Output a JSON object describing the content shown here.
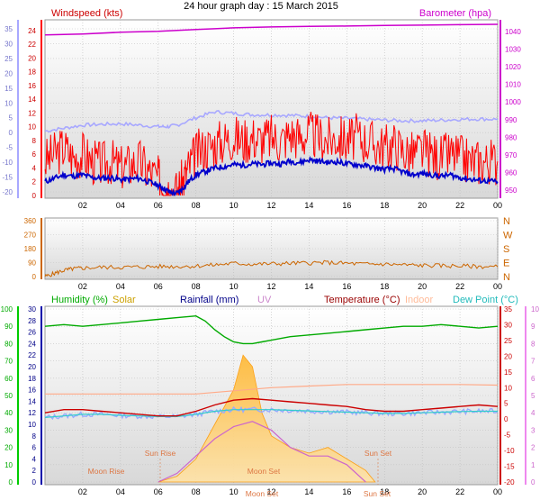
{
  "title": "24 hour graph day : 15 March 2015",
  "chart_data": [
    {
      "type": "line",
      "panel": "wind-pressure",
      "labels": {
        "wind": "Windspeed (kts)",
        "baro": "Barometer (hpa)"
      },
      "x_ticks": [
        "02",
        "04",
        "06",
        "08",
        "10",
        "12",
        "14",
        "16",
        "18",
        "20",
        "22",
        "00"
      ],
      "axes": {
        "left_temp": {
          "ticks": [
            35,
            30,
            25,
            20,
            15,
            10,
            5,
            0,
            -5,
            -10,
            -15,
            -20
          ],
          "range": [
            -20,
            35
          ]
        },
        "left_wind": {
          "ticks": [
            24,
            22,
            20,
            18,
            16,
            14,
            12,
            10,
            8,
            6,
            4,
            2,
            0
          ],
          "range": [
            0,
            24.5
          ]
        },
        "right_baro": {
          "ticks": [
            1040,
            1030,
            1020,
            1010,
            1000,
            990,
            980,
            970,
            960,
            950
          ],
          "range": [
            947,
            1045
          ]
        }
      },
      "series": [
        {
          "name": "Barometer (hpa)",
          "color": "#cc00cc",
          "x": [
            0,
            2,
            4,
            6,
            8,
            9,
            10,
            12,
            14,
            16,
            18,
            20,
            22,
            24
          ],
          "values": [
            1038,
            1038.5,
            1039.5,
            1040,
            1041,
            1041.5,
            1042,
            1042.5,
            1042.8,
            1043,
            1043.3,
            1043.5,
            1043.8,
            1044
          ]
        },
        {
          "name": "Temperature",
          "color": "#a8a8ff",
          "x": [
            0,
            1,
            2,
            3,
            4,
            5,
            6,
            6.5,
            7,
            8,
            9,
            10,
            11,
            12,
            13,
            14,
            15,
            16,
            17,
            18,
            19,
            20,
            21,
            22,
            23,
            24
          ],
          "values": [
            0.5,
            1.5,
            2.5,
            2.8,
            3,
            2.5,
            2,
            2,
            2.5,
            5,
            7,
            6.5,
            6,
            6,
            5.8,
            5.5,
            5,
            4.8,
            4.5,
            4.2,
            4,
            4,
            4.2,
            4.5,
            4.6,
            4.5
          ]
        },
        {
          "name": "Windspeed (kts)",
          "color": "#ff0000",
          "x": [
            0,
            0.5,
            1,
            1.5,
            2,
            2.5,
            3,
            3.5,
            4,
            4.5,
            5,
            5.5,
            6,
            6.3,
            6.6,
            7,
            7.3,
            7.6,
            8,
            8.5,
            9,
            9.5,
            10,
            10.5,
            11,
            11.5,
            12,
            12.5,
            13,
            13.5,
            14,
            14.5,
            15,
            15.5,
            16,
            16.5,
            17,
            17.5,
            18,
            18.5,
            19,
            19.5,
            20,
            20.5,
            21,
            21.5,
            22,
            22.5,
            23,
            23.5,
            24
          ],
          "values": [
            5,
            6,
            7,
            5.5,
            6,
            5,
            4.5,
            5,
            4,
            4.5,
            5,
            3.5,
            2.5,
            1.5,
            1,
            0.5,
            2,
            4,
            6,
            7,
            7.5,
            8,
            8.5,
            8,
            8.5,
            8,
            8.5,
            8,
            9,
            8.5,
            9,
            8.5,
            8,
            8.5,
            8,
            8.5,
            8,
            7.5,
            7,
            7.5,
            6.5,
            6,
            6.5,
            6,
            5.5,
            6,
            5.5,
            5,
            5,
            5,
            5
          ]
        },
        {
          "name": "Wind average",
          "color": "#0000cc",
          "x": [
            0,
            0.5,
            1,
            1.5,
            2,
            2.5,
            3,
            3.5,
            4,
            4.5,
            5,
            5.5,
            6,
            6.3,
            6.6,
            7,
            7.3,
            7.6,
            8,
            8.5,
            9,
            9.5,
            10,
            10.5,
            11,
            11.5,
            12,
            12.5,
            13,
            13.5,
            14,
            14.5,
            15,
            15.5,
            16,
            16.5,
            17,
            17.5,
            18,
            18.5,
            19,
            19.5,
            20,
            20.5,
            21,
            21.5,
            22,
            22.5,
            23,
            23.5,
            24
          ],
          "values": [
            2,
            2.5,
            3,
            2.8,
            3,
            2.6,
            2.5,
            2.6,
            2.3,
            2.4,
            2.5,
            2,
            1.5,
            1,
            0.5,
            0.3,
            1,
            2,
            3,
            3.5,
            4,
            4.2,
            4.5,
            4.4,
            4.6,
            4.5,
            4.7,
            4.6,
            5,
            4.8,
            5.2,
            5,
            4.8,
            4.9,
            4.6,
            4.5,
            4.3,
            4,
            3.8,
            3.9,
            3.4,
            3,
            3.2,
            3,
            2.8,
            3,
            2.6,
            2.4,
            2.2,
            2.1,
            2
          ]
        }
      ]
    },
    {
      "type": "line",
      "panel": "wind-direction",
      "x_ticks": [
        "02",
        "04",
        "06",
        "08",
        "10",
        "12",
        "14",
        "16",
        "18",
        "20",
        "22",
        "00"
      ],
      "axes": {
        "left": {
          "ticks": [
            360,
            270,
            180,
            90,
            0
          ],
          "range": [
            0,
            360
          ]
        },
        "right": {
          "ticks": [
            "N",
            "W",
            "S",
            "E",
            "N"
          ]
        }
      },
      "series": [
        {
          "name": "Wind direction",
          "color": "#cc6600",
          "x": [
            0,
            0.5,
            1,
            1.5,
            2,
            3,
            4,
            5,
            6,
            7,
            8,
            9,
            10,
            11,
            12,
            13,
            14,
            15,
            16,
            17,
            18,
            19,
            20,
            21,
            22,
            23,
            24
          ],
          "values": [
            0,
            20,
            40,
            50,
            55,
            60,
            60,
            62,
            65,
            65,
            68,
            75,
            85,
            80,
            82,
            85,
            88,
            90,
            85,
            80,
            80,
            75,
            72,
            70,
            68,
            65,
            62
          ]
        }
      ]
    },
    {
      "type": "line",
      "panel": "humidity-temperature",
      "labels": {
        "humidity": "Humidity (%)",
        "solar": "Solar",
        "rain": "Rainfall (mm)",
        "uv": "UV",
        "temp": "Temperature (°C)",
        "indoor": "Indoor",
        "dew": "Dew Point (°C)"
      },
      "x_ticks": [
        "02",
        "04",
        "06",
        "08",
        "10",
        "12",
        "14",
        "16",
        "18",
        "20",
        "22",
        "00"
      ],
      "axes": {
        "left_humidity": {
          "ticks": [
            100,
            90,
            80,
            70,
            60,
            50,
            40,
            30,
            20,
            10,
            0
          ],
          "range": [
            0,
            100
          ]
        },
        "left_rain": {
          "ticks": [
            30,
            28,
            26,
            24,
            22,
            20,
            18,
            16,
            14,
            12,
            10,
            8,
            6,
            4,
            2,
            0
          ],
          "range": [
            0,
            30
          ]
        },
        "right_temp": {
          "ticks": [
            35,
            30,
            25,
            20,
            15,
            10,
            5,
            0,
            -5,
            -10,
            -15,
            -20
          ],
          "range": [
            -20,
            35
          ]
        },
        "right_uv": {
          "ticks": [
            10,
            9,
            8,
            7,
            6,
            5,
            4,
            3,
            2,
            1,
            0
          ],
          "range": [
            0,
            10
          ]
        }
      },
      "annotations": [
        "Moon Rise",
        "Sun Rise",
        "Moon Set",
        "Sun Set",
        "Moon Set",
        "Sun Set"
      ],
      "series": [
        {
          "name": "Humidity (%)",
          "color": "#00aa00",
          "x": [
            0,
            1,
            2,
            3,
            4,
            5,
            6,
            7,
            8,
            8.5,
            9,
            9.5,
            10,
            10.5,
            11,
            11.5,
            12,
            13,
            14,
            15,
            16,
            17,
            18,
            19,
            20,
            21,
            22,
            23,
            24
          ],
          "values": [
            90,
            91,
            90,
            91,
            92,
            93,
            94,
            95,
            96,
            93,
            88,
            84,
            81,
            80,
            80,
            81,
            82,
            84,
            85,
            86,
            87,
            88,
            89,
            90,
            90,
            91,
            90,
            89,
            90
          ]
        },
        {
          "name": "Temperature (°C)",
          "color": "#cc0000",
          "x": [
            0,
            1,
            2,
            3,
            4,
            5,
            6,
            7,
            8,
            9,
            10,
            11,
            12,
            13,
            14,
            15,
            16,
            17,
            18,
            19,
            20,
            21,
            22,
            23,
            24
          ],
          "values": [
            2,
            3,
            3,
            2.5,
            2,
            1.5,
            1,
            1,
            2.5,
            4.5,
            6,
            6.5,
            6,
            5.5,
            5,
            4.5,
            4,
            3,
            2.5,
            2.5,
            3,
            3.5,
            4,
            4.5,
            4
          ]
        },
        {
          "name": "Dew Point (°C)",
          "color": "#33cccc",
          "x": [
            0,
            1,
            2,
            3,
            4,
            5,
            6,
            7,
            8,
            9,
            10,
            11,
            12,
            13,
            14,
            15,
            16,
            17,
            18,
            19,
            20,
            21,
            22,
            23,
            24
          ],
          "values": [
            0.5,
            1,
            1.5,
            1.5,
            1.2,
            1,
            0.8,
            0.8,
            1.5,
            2.5,
            3,
            3,
            3,
            2.8,
            2.6,
            2.4,
            2.2,
            2,
            1.8,
            1.8,
            2,
            2.2,
            2.4,
            2.5,
            2.5
          ]
        },
        {
          "name": "Indoor",
          "color": "#ffaa88",
          "x": [
            0,
            2,
            4,
            6,
            8,
            10,
            12,
            14,
            16,
            18,
            20,
            22,
            24
          ],
          "values": [
            8,
            8,
            8,
            8,
            8,
            9,
            10,
            10.5,
            11,
            11,
            11,
            11,
            10.8
          ]
        },
        {
          "name": "Solar",
          "color": "#ffaa22",
          "x": [
            6,
            7,
            8,
            9,
            10,
            10.5,
            11,
            11.5,
            12,
            13,
            14,
            15,
            16,
            17,
            17.5
          ],
          "values": [
            0,
            1,
            4,
            10,
            16,
            22,
            20,
            12,
            8,
            6,
            5,
            6,
            4,
            2,
            0
          ]
        },
        {
          "name": "UV",
          "color": "#cc66cc",
          "x": [
            6,
            7,
            8,
            9,
            10,
            11,
            12,
            13,
            14,
            15,
            16,
            17
          ],
          "values": [
            0,
            0.5,
            1.5,
            2.5,
            3.2,
            3.5,
            3,
            2,
            1.5,
            1.5,
            1,
            0
          ]
        }
      ]
    }
  ]
}
